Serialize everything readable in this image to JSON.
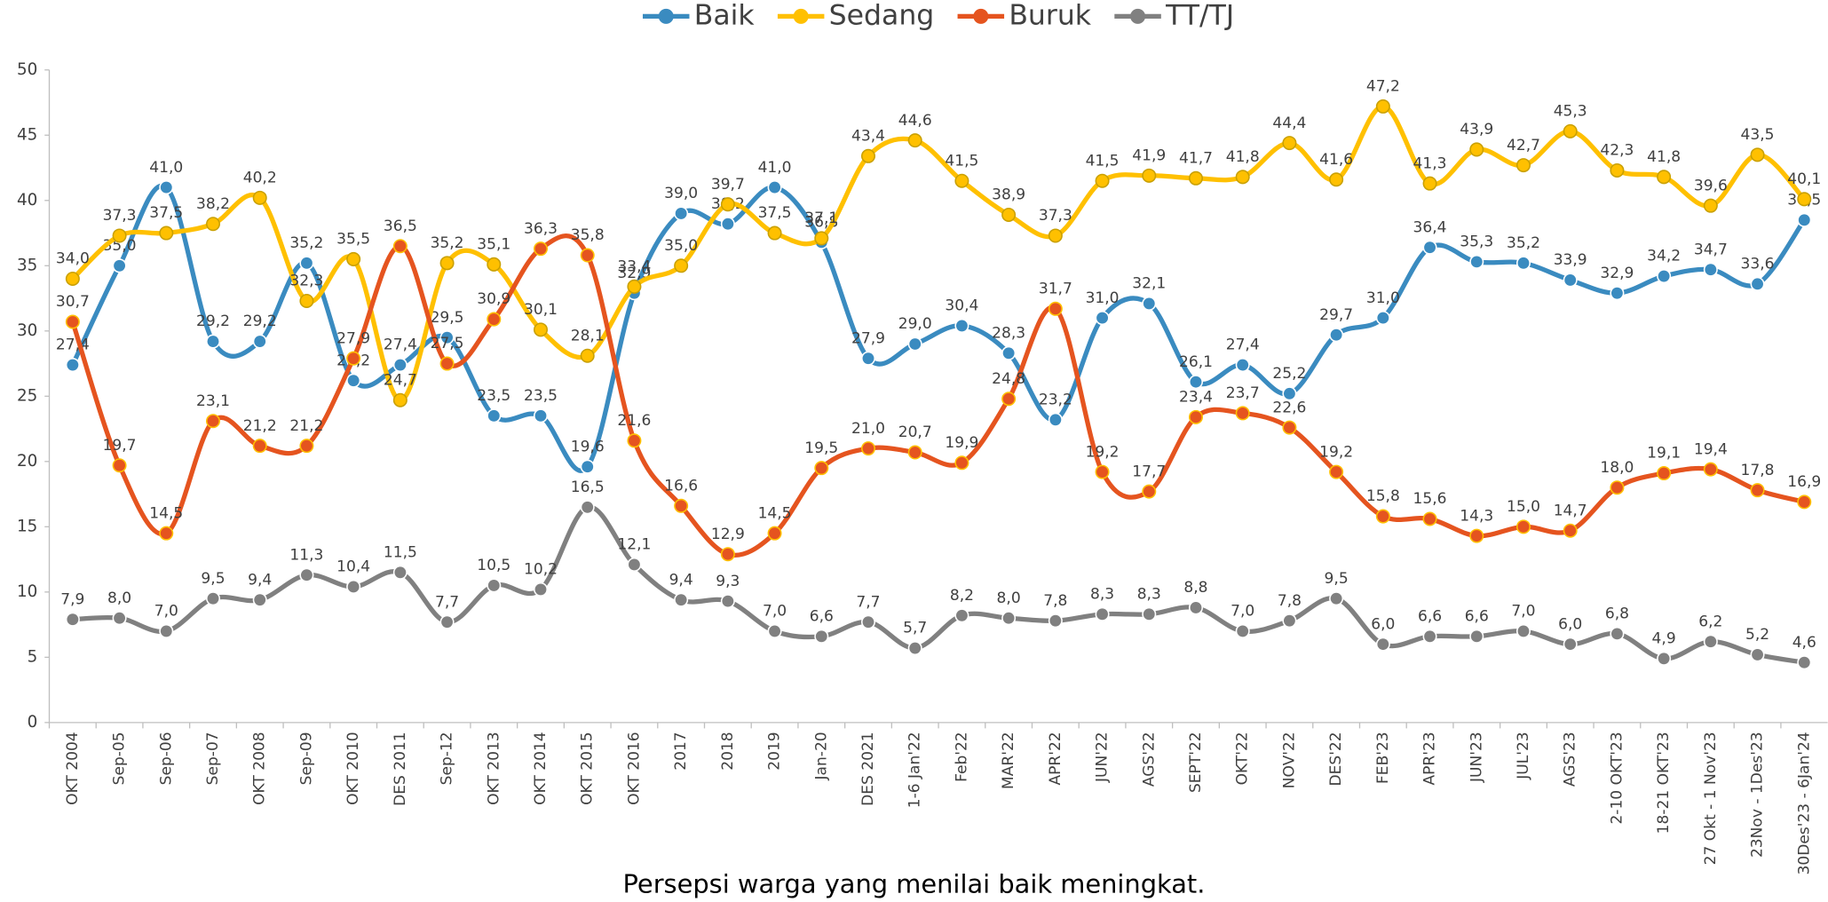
{
  "chart_data": {
    "type": "line",
    "caption": "Persepsi warga yang menilai baik meningkat.",
    "categories": [
      "OKT 2004",
      "Sep-05",
      "Sep-06",
      "Sep-07",
      "OKT 2008",
      "Sep-09",
      "OKT 2010",
      "DES 2011",
      "Sep-12",
      "OKT 2013",
      "OKT 2014",
      "OKT 2015",
      "OKT 2016",
      "2017",
      "2018",
      "2019",
      "Jan-20",
      "DES 2021",
      "1-6 Jan'22",
      "Feb'22",
      "MAR'22",
      "APR'22",
      "JUN'22",
      "AGS'22",
      "SEPT'22",
      "OKT'22",
      "NOV'22",
      "DES'22",
      "FEB'23",
      "APR'23",
      "JUN'23",
      "JUL'23",
      "AGS'23",
      "2-10 OKT'23",
      "18-21 OKT'23",
      "27 Okt - 1 Nov'23",
      "23Nov - 1Des'23",
      "30Des'23 - 6Jan'24"
    ],
    "series": [
      {
        "name": "Baik",
        "color": "#3a8bc0",
        "values": [
          27.4,
          35.0,
          41.0,
          29.2,
          29.2,
          35.2,
          26.2,
          27.4,
          29.5,
          23.5,
          23.5,
          19.6,
          32.9,
          39.0,
          38.2,
          41.0,
          36.8,
          27.9,
          29.0,
          30.4,
          28.3,
          23.2,
          31.0,
          32.1,
          26.1,
          27.4,
          25.2,
          29.7,
          31.0,
          36.4,
          35.3,
          35.2,
          33.9,
          32.9,
          34.2,
          34.7,
          33.6,
          38.5
        ],
        "value_labels": [
          "27,4",
          "35,0",
          "41,0",
          "29,2",
          "29,2",
          "35,2",
          "26,2",
          "27,4",
          "29,5",
          "23,5",
          "23,5",
          "19,6",
          "32,9",
          "39,0",
          "38,2",
          "41,0",
          "36,8",
          "27,9",
          "29,0",
          "30,4",
          "28,3",
          "23,2",
          "31,0",
          "32,1",
          "26,1",
          "27,4",
          "25,2",
          "29,7",
          "31,0",
          "36,4",
          "35,3",
          "35,2",
          "33,9",
          "32,9",
          "34,2",
          "34,7",
          "33,6",
          "38,5"
        ]
      },
      {
        "name": "Sedang",
        "color": "#ffc000",
        "values": [
          34.0,
          37.3,
          37.5,
          38.2,
          40.2,
          32.3,
          35.5,
          24.7,
          35.2,
          35.1,
          30.1,
          28.1,
          33.4,
          35.0,
          39.7,
          37.5,
          37.1,
          43.4,
          44.6,
          41.5,
          38.9,
          37.3,
          41.5,
          41.9,
          41.7,
          41.8,
          44.4,
          41.6,
          47.2,
          41.3,
          43.9,
          42.7,
          45.3,
          42.3,
          41.8,
          39.6,
          43.5,
          40.1
        ],
        "value_labels": [
          "34,0",
          "37,3",
          "37,5",
          "38,2",
          "40,2",
          "32,3",
          "35,5",
          "24,7",
          "35,2",
          "35,1",
          "30,1",
          "28,1",
          "33,4",
          "35,0",
          "39,7",
          "37,5",
          "37,1",
          "43,4",
          "44,6",
          "41,5",
          "38,9",
          "37,3",
          "41,5",
          "41,9",
          "41,7",
          "41,8",
          "44,4",
          "41,6",
          "47,2",
          "41,3",
          "43,9",
          "42,7",
          "45,3",
          "42,3",
          "41,8",
          "39,6",
          "43,5",
          "40,1"
        ]
      },
      {
        "name": "Buruk",
        "color": "#e5541f",
        "values": [
          30.7,
          19.7,
          14.5,
          23.1,
          21.2,
          21.2,
          27.9,
          36.5,
          27.5,
          30.9,
          36.3,
          35.8,
          21.6,
          16.6,
          12.9,
          14.5,
          19.5,
          21.0,
          20.7,
          19.9,
          24.8,
          31.7,
          19.2,
          17.7,
          23.4,
          23.7,
          22.6,
          19.2,
          15.8,
          15.6,
          14.3,
          15.0,
          14.7,
          18.0,
          19.1,
          19.4,
          17.8,
          16.9
        ],
        "value_labels": [
          "30,7",
          "19,7",
          "14,5",
          "23,1",
          "21,2",
          "21,2",
          "27,9",
          "36,5",
          "27,5",
          "30,9",
          "36,3",
          "35,8",
          "21,6",
          "16,6",
          "12,9",
          "14,5",
          "19,5",
          "21,0",
          "20,7",
          "19,9",
          "24,8",
          "31,7",
          "19,2",
          "17,7",
          "23,4",
          "23,7",
          "22,6",
          "19,2",
          "15,8",
          "15,6",
          "14,3",
          "15,0",
          "14,7",
          "18,0",
          "19,1",
          "19,4",
          "17,8",
          "16,9"
        ]
      },
      {
        "name": "TT/TJ",
        "color": "#808080",
        "values": [
          7.9,
          8.0,
          7.0,
          9.5,
          9.4,
          11.3,
          10.4,
          11.5,
          7.7,
          10.5,
          10.2,
          16.5,
          12.1,
          9.4,
          9.3,
          7.0,
          6.6,
          7.7,
          5.7,
          8.2,
          8.0,
          7.8,
          8.3,
          8.3,
          8.8,
          7.0,
          7.8,
          9.5,
          6.0,
          6.6,
          6.6,
          7.0,
          6.0,
          6.8,
          4.9,
          6.2,
          5.2,
          4.6
        ],
        "value_labels": [
          "7,9",
          "8,0",
          "7,0",
          "9,5",
          "9,4",
          "11,3",
          "10,4",
          "11,5",
          "7,7",
          "10,5",
          "10,2",
          "16,5",
          "12,1",
          "9,4",
          "9,3",
          "7,0",
          "6,6",
          "7,7",
          "5,7",
          "8,2",
          "8,0",
          "7,8",
          "8,3",
          "8,3",
          "8,8",
          "7,0",
          "7,8",
          "9,5",
          "6,0",
          "6,6",
          "6,6",
          "7,0",
          "6,0",
          "6,8",
          "4,9",
          "6,2",
          "5,2",
          "4,6"
        ]
      }
    ],
    "ylim": [
      0,
      50
    ],
    "yticks": [
      0,
      5,
      10,
      15,
      20,
      25,
      30,
      35,
      40,
      45,
      50
    ],
    "legend": "top"
  }
}
